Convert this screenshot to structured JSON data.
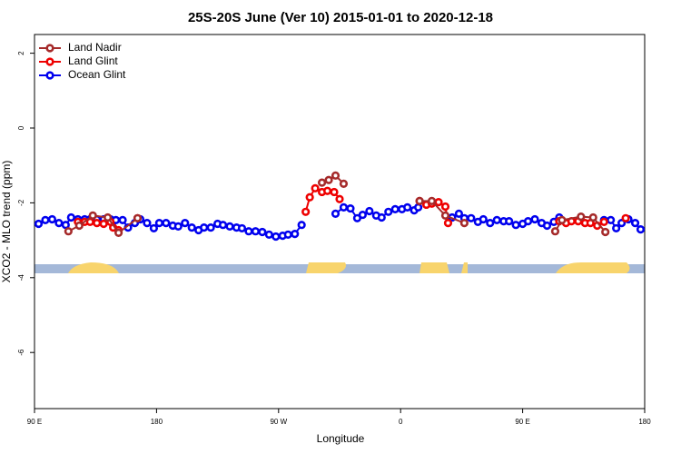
{
  "chart_data": {
    "type": "line",
    "title": "25S-20S June (Ver 10)   2015-01-01 to 2020-12-18",
    "x_label": "Longitude",
    "y_label": "XCO2 - MLO trend (ppm)",
    "xlim": [
      90,
      540
    ],
    "ylim": [
      -7.5,
      2.5
    ],
    "xticks": [
      {
        "value": 90,
        "label": "90 E"
      },
      180,
      {
        "value": 270,
        "label": "90 W"
      },
      {
        "value": 360,
        "label": "0"
      },
      {
        "value": 450,
        "label": "90 E"
      },
      {
        "value": 540,
        "label": "180"
      }
    ],
    "yticks": [
      -6,
      -4,
      -2,
      0,
      2
    ],
    "legend": "top-left",
    "series": [
      {
        "name": "Land Nadir",
        "color": "#a52a2a",
        "x": [
          115,
          123,
          133,
          144,
          152,
          166,
          null,
          302,
          307,
          312,
          318,
          null,
          374,
          383,
          393,
          407,
          null,
          474,
          479,
          493,
          502,
          511
        ],
        "values": [
          -2.76,
          -2.61,
          -2.34,
          -2.39,
          -2.8,
          -2.41,
          null,
          -1.46,
          -1.39,
          -1.27,
          -1.49,
          null,
          -1.95,
          -1.95,
          -2.34,
          -2.54,
          null,
          -2.76,
          -2.46,
          -2.37,
          -2.39,
          -2.78
        ]
      },
      {
        "name": "Land Glint",
        "color": "#ee0000",
        "x": [
          122,
          127,
          131,
          136,
          141,
          146,
          148,
          152,
          null,
          166,
          null,
          290,
          293,
          297,
          302,
          306,
          311,
          315,
          null,
          374,
          379,
          383,
          388,
          393,
          395,
          null,
          477,
          482,
          486,
          491,
          496,
          500,
          505,
          510,
          null,
          526
        ],
        "values": [
          -2.51,
          -2.51,
          -2.51,
          -2.54,
          -2.56,
          -2.51,
          -2.66,
          -2.73,
          null,
          -2.41,
          null,
          -2.24,
          -1.85,
          -1.61,
          -1.71,
          -1.68,
          -1.71,
          -1.9,
          null,
          -1.95,
          -2.05,
          -2.02,
          -1.98,
          -2.1,
          -2.54,
          null,
          -2.49,
          -2.54,
          -2.49,
          -2.49,
          -2.54,
          -2.54,
          -2.61,
          -2.51,
          null,
          -2.41
        ]
      },
      {
        "name": "Ocean Glint",
        "color": "#0000ee",
        "x": [
          93,
          98,
          103,
          108,
          113,
          117,
          122,
          127,
          131,
          136,
          141,
          146,
          150,
          155,
          159,
          164,
          168,
          173,
          178,
          182,
          187,
          192,
          196,
          201,
          206,
          211,
          215,
          220,
          225,
          229,
          234,
          239,
          243,
          248,
          253,
          258,
          263,
          268,
          273,
          277,
          282,
          287,
          null,
          312,
          318,
          323,
          328,
          332,
          337,
          342,
          346,
          351,
          356,
          361,
          365,
          370,
          373,
          null,
          398,
          403,
          407,
          412,
          417,
          421,
          426,
          431,
          436,
          440,
          445,
          450,
          454,
          459,
          464,
          468,
          473,
          477,
          null,
          510,
          515,
          519,
          523,
          528,
          533,
          537
        ],
        "values": [
          -2.56,
          -2.46,
          -2.44,
          -2.54,
          -2.59,
          -2.39,
          -2.44,
          -2.44,
          -2.44,
          -2.44,
          -2.44,
          -2.44,
          -2.46,
          -2.46,
          -2.66,
          -2.54,
          -2.44,
          -2.54,
          -2.68,
          -2.54,
          -2.54,
          -2.61,
          -2.63,
          -2.54,
          -2.66,
          -2.73,
          -2.66,
          -2.66,
          -2.56,
          -2.59,
          -2.63,
          -2.66,
          -2.68,
          -2.76,
          -2.76,
          -2.78,
          -2.85,
          -2.9,
          -2.88,
          -2.85,
          -2.83,
          -2.59,
          null,
          -2.29,
          -2.12,
          -2.15,
          -2.41,
          -2.32,
          -2.22,
          -2.34,
          -2.39,
          -2.24,
          -2.17,
          -2.17,
          -2.12,
          -2.2,
          -2.12,
          null,
          -2.39,
          -2.29,
          -2.41,
          -2.41,
          -2.51,
          -2.44,
          -2.54,
          -2.46,
          -2.49,
          -2.49,
          -2.59,
          -2.56,
          -2.49,
          -2.44,
          -2.54,
          -2.61,
          -2.51,
          -2.39,
          null,
          -2.46,
          -2.46,
          -2.68,
          -2.54,
          -2.44,
          -2.54,
          -2.71
        ]
      }
    ]
  }
}
